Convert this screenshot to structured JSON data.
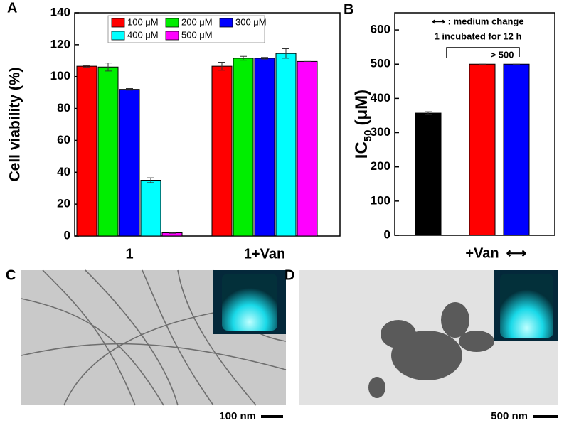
{
  "chart_data": [
    {
      "type": "grouped-bar",
      "panel": "A",
      "ylabel": "Cell viability (%)",
      "categories": [
        "1",
        "1+Van"
      ],
      "series": [
        {
          "name": "100 μM",
          "color": "#ff0000",
          "values": [
            106.5,
            106.5
          ],
          "errors": [
            0.5,
            2.5
          ]
        },
        {
          "name": "200 μM",
          "color": "#00ee00",
          "values": [
            106,
            111.5
          ],
          "errors": [
            2.5,
            1.2
          ]
        },
        {
          "name": "300 μM",
          "color": "#0000ff",
          "values": [
            92,
            111.5
          ],
          "errors": [
            0.5,
            0.5
          ]
        },
        {
          "name": "400 μM",
          "color": "#00ffff",
          "values": [
            35,
            114.5
          ],
          "errors": [
            1.5,
            3
          ]
        },
        {
          "name": "500 μM",
          "color": "#ff00ff",
          "values": [
            2,
            109.5
          ],
          "errors": [
            0.3,
            0
          ]
        }
      ],
      "ylim": [
        0,
        140
      ],
      "yticks": [
        0,
        20,
        40,
        60,
        80,
        100,
        120,
        140
      ]
    },
    {
      "type": "bar",
      "panel": "B",
      "ylabel": {
        "main": "IC",
        "sub": "50",
        "unit": "(μM)"
      },
      "categories": [
        null,
        "+Van",
        "⟷"
      ],
      "values": [
        357,
        500,
        500
      ],
      "errors": [
        4,
        0,
        0
      ],
      "colors": [
        "#000000",
        "#ff0000",
        "#0000ff"
      ],
      "annotations": [
        "⟷ : medium change",
        "1 incubated for 12 h",
        "> 500"
      ],
      "ylim": [
        0,
        650
      ],
      "yticks": [
        0,
        100,
        200,
        300,
        400,
        500,
        600
      ]
    }
  ],
  "images": [
    {
      "panel": "C",
      "scale_bar": "100 nm"
    },
    {
      "panel": "D",
      "scale_bar": "500 nm"
    }
  ]
}
